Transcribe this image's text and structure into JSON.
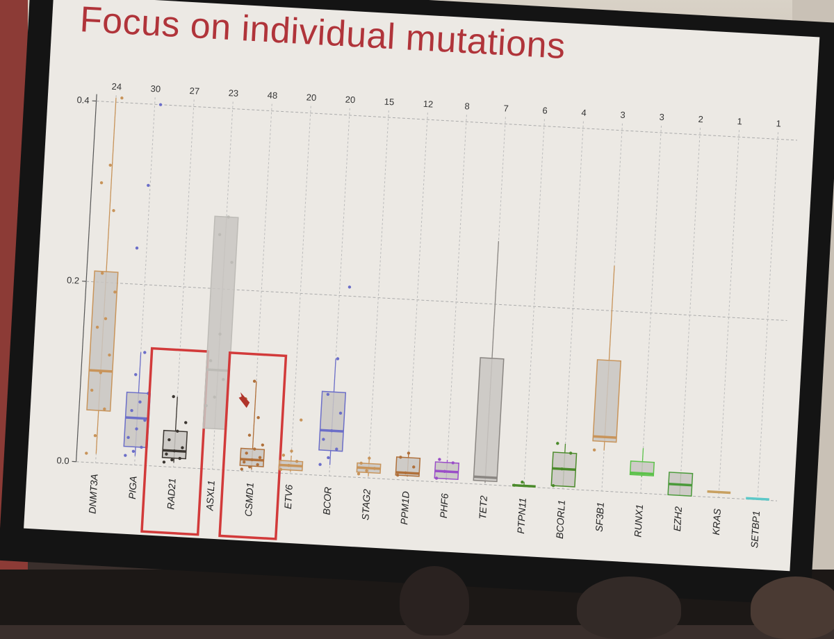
{
  "slide": {
    "title": "Focus on individual mutations"
  },
  "chart_data": {
    "type": "box",
    "ylim": [
      0,
      0.4
    ],
    "yticks": [
      "0.0",
      "0.2",
      "0.4"
    ],
    "highlighted": [
      "RAD21",
      "CSMD1"
    ],
    "categories": [
      {
        "name": "DNMT3A",
        "count": "24",
        "color": "#c8945a",
        "box": true,
        "q1": 0.058,
        "median": 0.102,
        "q3": 0.212,
        "wlo": 0.01,
        "whi": 0.405,
        "points": [
          0.01,
          0.03,
          0.06,
          0.08,
          0.1,
          0.12,
          0.15,
          0.16,
          0.19,
          0.21,
          0.28,
          0.31,
          0.33,
          0.405
        ]
      },
      {
        "name": "PIGA",
        "count": "30",
        "color": "#6b6ec8",
        "box": true,
        "q1": 0.02,
        "median": 0.052,
        "q3": 0.08,
        "wlo": 0.01,
        "whi": 0.125,
        "points": [
          0.01,
          0.015,
          0.02,
          0.03,
          0.04,
          0.05,
          0.06,
          0.07,
          0.08,
          0.1,
          0.125,
          0.24,
          0.31,
          0.4
        ]
      },
      {
        "name": "RAD21",
        "count": "27",
        "color": "#3a3530",
        "box": true,
        "q1": 0.01,
        "median": 0.018,
        "q3": 0.04,
        "wlo": 0.005,
        "whi": 0.078,
        "points": [
          0.005,
          0.008,
          0.01,
          0.014,
          0.018,
          0.022,
          0.03,
          0.04,
          0.05,
          0.078
        ]
      },
      {
        "name": "ASXL1",
        "count": "23",
        "color": "#bdbbb6",
        "box": true,
        "q1": 0.045,
        "median": 0.11,
        "q3": 0.28,
        "wlo": 0.045,
        "whi": 0.28,
        "points": [
          0.07,
          0.08,
          0.1,
          0.12,
          0.15,
          0.23,
          0.26,
          0.28
        ]
      },
      {
        "name": "CSMD1",
        "count": "48",
        "color": "#b0703a",
        "box": true,
        "q1": 0.006,
        "median": 0.013,
        "q3": 0.025,
        "wlo": 0.002,
        "whi": 0.1,
        "points": [
          0.002,
          0.005,
          0.008,
          0.01,
          0.013,
          0.016,
          0.02,
          0.025,
          0.03,
          0.04,
          0.06,
          0.08,
          0.1
        ]
      },
      {
        "name": "ETV6",
        "count": "20",
        "color": "#c8945a",
        "box": true,
        "q1": 0.004,
        "median": 0.009,
        "q3": 0.014,
        "wlo": 0.002,
        "whi": 0.02,
        "points": [
          0.004,
          0.009,
          0.014,
          0.02,
          0.025,
          0.06
        ]
      },
      {
        "name": "BCOR",
        "count": "20",
        "color": "#6b6ec8",
        "box": true,
        "q1": 0.028,
        "median": 0.05,
        "q3": 0.093,
        "wlo": 0.012,
        "whi": 0.13,
        "points": [
          0.012,
          0.02,
          0.03,
          0.04,
          0.05,
          0.07,
          0.09,
          0.13,
          0.21
        ]
      },
      {
        "name": "STAG2",
        "count": "15",
        "color": "#c8945a",
        "box": true,
        "q1": 0.006,
        "median": 0.011,
        "q3": 0.016,
        "wlo": 0.002,
        "whi": 0.022,
        "points": [
          0.004,
          0.008,
          0.011,
          0.016,
          0.022
        ]
      },
      {
        "name": "PPM1D",
        "count": "12",
        "color": "#b0703a",
        "box": true,
        "q1": 0.005,
        "median": 0.008,
        "q3": 0.025,
        "wlo": 0.004,
        "whi": 0.03,
        "points": [
          0.005,
          0.008,
          0.015,
          0.025,
          0.03
        ]
      },
      {
        "name": "PHF6",
        "count": "8",
        "color": "#9a4ec8",
        "box": true,
        "q1": 0.004,
        "median": 0.012,
        "q3": 0.022,
        "wlo": 0.003,
        "whi": 0.025,
        "points": [
          0.004,
          0.012,
          0.022,
          0.025
        ]
      },
      {
        "name": "TET2",
        "count": "7",
        "color": "#8a8682",
        "box": true,
        "q1": 0.004,
        "median": 0.008,
        "q3": 0.14,
        "wlo": 0.002,
        "whi": 0.27,
        "points": []
      },
      {
        "name": "PTPN11",
        "count": "6",
        "color": "#4a8a2a",
        "box": false,
        "q1": 0.0,
        "median": 0.001,
        "q3": 0.002,
        "wlo": 0.0,
        "whi": 0.005,
        "points": [
          0.001,
          0.005
        ]
      },
      {
        "name": "BCORL1",
        "count": "4",
        "color": "#4a8a2a",
        "box": true,
        "q1": 0.003,
        "median": 0.022,
        "q3": 0.04,
        "wlo": 0.003,
        "whi": 0.05,
        "points": [
          0.003,
          0.022,
          0.04,
          0.05
        ]
      },
      {
        "name": "SF3B1",
        "count": "3",
        "color": "#c8945a",
        "box": true,
        "q1": 0.055,
        "median": 0.06,
        "q3": 0.145,
        "wlo": 0.045,
        "whi": 0.25,
        "points": [
          0.045
        ]
      },
      {
        "name": "RUNX1",
        "count": "3",
        "color": "#5cc24a",
        "box": true,
        "q1": 0.02,
        "median": 0.022,
        "q3": 0.035,
        "wlo": 0.018,
        "whi": 0.05,
        "points": []
      },
      {
        "name": "EZH2",
        "count": "2",
        "color": "#4a9a3a",
        "box": true,
        "q1": 0.0,
        "median": 0.012,
        "q3": 0.025,
        "wlo": 0.0,
        "whi": 0.025,
        "points": []
      },
      {
        "name": "KRAS",
        "count": "1",
        "color": "#c8a060",
        "box": false,
        "q1": 0.005,
        "median": 0.006,
        "q3": 0.007,
        "wlo": 0.006,
        "whi": 0.006,
        "points": []
      },
      {
        "name": "SETBP1",
        "count": "1",
        "color": "#5cc8c8",
        "box": false,
        "q1": 0.0,
        "median": 0.001,
        "q3": 0.002,
        "wlo": 0.001,
        "whi": 0.001,
        "points": []
      }
    ]
  }
}
